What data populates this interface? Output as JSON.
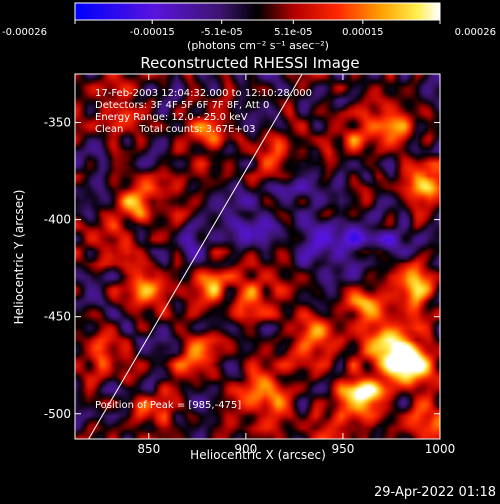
{
  "chart_data": {
    "type": "heatmap",
    "title": "Reconstructed RHESSI Image",
    "xlabel": "Heliocentric X (arcsec)",
    "ylabel": "Heliocentric Y (arcsec)",
    "xlim": [
      812,
      1000
    ],
    "ylim": [
      -513,
      -325
    ],
    "x_ticks": [
      850,
      900,
      950,
      1000
    ],
    "y_ticks": [
      -350,
      -400,
      -450,
      -500
    ],
    "colorbar": {
      "min": -0.00026,
      "max": 0.00026,
      "ticks": [
        {
          "value": -0.00026,
          "label": "-0.00026"
        },
        {
          "value": -0.00015,
          "label": "-0.00015"
        },
        {
          "value": -5.1e-05,
          "label": "-5.1e-05"
        },
        {
          "value": 5.1e-05,
          "label": "5.1e-05"
        },
        {
          "value": 0.00015,
          "label": "0.00015"
        },
        {
          "value": 0.00026,
          "label": "0.00026"
        }
      ],
      "units_label": "(photons cm⁻² s⁻¹ asec⁻²)"
    },
    "annotations": [
      "17-Feb-2003 12:04:32.000 to 12:10:28.000",
      "Detectors: 3F 4F 5F 6F 7F 8F, Att 0",
      "Energy Range: 12.0 - 25.0 keV",
      "Clean     Total counts: 3.67E+03"
    ],
    "peak_label": "Position of Peak = [985,-475]",
    "peak": [
      985,
      -475
    ],
    "limb_line": [
      [
        819,
        -513
      ],
      [
        929,
        -325
      ]
    ],
    "grid": false,
    "hot_spots": [
      {
        "x": 960,
        "y": -490,
        "v": 0.00026
      },
      {
        "x": 975,
        "y": -465,
        "v": 0.00024
      },
      {
        "x": 985,
        "y": -475,
        "v": 0.00026
      },
      {
        "x": 935,
        "y": -460,
        "v": 0.00022
      },
      {
        "x": 910,
        "y": -490,
        "v": 0.0002
      },
      {
        "x": 875,
        "y": -470,
        "v": 0.00018
      },
      {
        "x": 880,
        "y": -435,
        "v": 0.00015
      },
      {
        "x": 905,
        "y": -440,
        "v": 0.00014
      },
      {
        "x": 845,
        "y": -390,
        "v": 0.00016
      },
      {
        "x": 830,
        "y": -410,
        "v": 0.00013
      },
      {
        "x": 850,
        "y": -435,
        "v": 0.00017
      },
      {
        "x": 960,
        "y": -445,
        "v": 0.00016
      },
      {
        "x": 985,
        "y": -435,
        "v": 0.00018
      },
      {
        "x": 995,
        "y": -380,
        "v": 0.00017
      },
      {
        "x": 975,
        "y": -350,
        "v": 0.00014
      },
      {
        "x": 955,
        "y": -360,
        "v": 0.00012
      },
      {
        "x": 915,
        "y": -365,
        "v": 0.00012
      },
      {
        "x": 880,
        "y": -355,
        "v": 0.00011
      },
      {
        "x": 835,
        "y": -345,
        "v": 0.0001
      },
      {
        "x": 825,
        "y": -470,
        "v": 0.00012
      },
      {
        "x": 850,
        "y": -500,
        "v": 0.0001
      },
      {
        "x": 995,
        "y": -505,
        "v": 0.00015
      },
      {
        "x": 940,
        "y": -510,
        "v": 0.0001
      }
    ],
    "cold_spots": [
      {
        "x": 905,
        "y": -405,
        "v": -0.0001
      },
      {
        "x": 935,
        "y": -415,
        "v": -0.00012
      },
      {
        "x": 955,
        "y": -405,
        "v": -0.00011
      },
      {
        "x": 885,
        "y": -395,
        "v": -8e-05
      },
      {
        "x": 920,
        "y": -380,
        "v": -7e-05
      },
      {
        "x": 870,
        "y": -415,
        "v": -6e-05
      },
      {
        "x": 975,
        "y": -410,
        "v": -6e-05
      }
    ]
  },
  "footer": {
    "timestamp": "29-Apr-2022 01:18"
  }
}
